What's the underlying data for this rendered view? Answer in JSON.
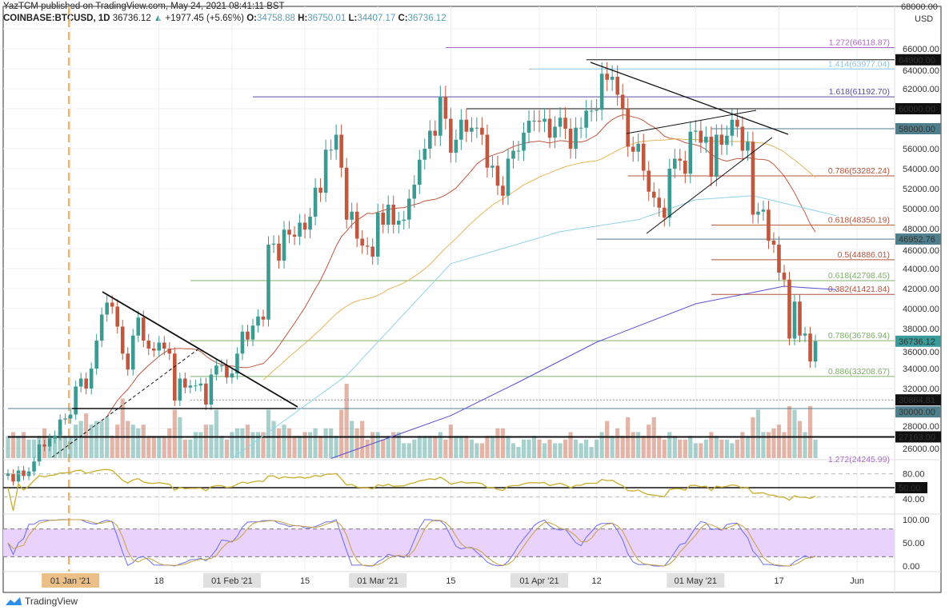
{
  "header": {
    "published": "YazTCM published on TradingView.com, May 24, 2021 08:41:11 BST",
    "symbol": "COINBASE:BTCUSD, 1D",
    "last": "36736.12",
    "change": "+1977.45 (+5.69%)",
    "open_label": "O:",
    "open": "34758.88",
    "high_label": "H:",
    "high": "36750.01",
    "low_label": "L:",
    "low": "34407.17",
    "close_label": "C:",
    "close": "36736.12"
  },
  "footer": {
    "brand": "TradingView"
  },
  "colors": {
    "up": "#3d9a93",
    "down": "#c0583f",
    "sma_fast": "#c0583f",
    "sma_mid": "#e8b45a",
    "sma_slow": "#8fd3e8",
    "sma_long": "#5a4fcf",
    "rsi": "#c9ad2b",
    "stoch_k": "#6a6ef0",
    "stoch_d": "#c8a048",
    "stoch_band": "#e9d2fb",
    "jan_marker": "#e8b870"
  },
  "chart_data": {
    "type": "candlestick",
    "symbol": "COINBASE:BTCUSD",
    "interval": "1D",
    "currency": "USD",
    "y_scale": "price",
    "ylim": [
      26000,
      68000
    ],
    "y_ticks": [
      "68000.00",
      "66000.00",
      "64000.00",
      "62000.00",
      "60000.00",
      "58000.00",
      "56000.00",
      "54000.00",
      "52000.00",
      "50000.00",
      "48000.00",
      "46000.00",
      "44000.00",
      "42000.00",
      "40000.00",
      "38000.00",
      "36000.00",
      "34000.00",
      "32000.00",
      "30000.00",
      "28000.00",
      "26000.00"
    ],
    "x_ticks": [
      {
        "date": "2021-01-01",
        "label": "01 Jan '21",
        "highlight": "orange"
      },
      {
        "date": "2021-01-18",
        "label": "18"
      },
      {
        "date": "2021-02-01",
        "label": "01 Feb '21",
        "highlight": "gray"
      },
      {
        "date": "2021-02-15",
        "label": "15"
      },
      {
        "date": "2021-03-01",
        "label": "01 Mar '21",
        "highlight": "gray"
      },
      {
        "date": "2021-03-15",
        "label": "15"
      },
      {
        "date": "2021-04-01",
        "label": "01 Apr '21",
        "highlight": "gray"
      },
      {
        "date": "2021-04-12",
        "label": "12"
      },
      {
        "date": "2021-05-01",
        "label": "01 May '21",
        "highlight": "gray"
      },
      {
        "date": "2021-05-17",
        "label": "17"
      },
      {
        "date": "2021-06-01",
        "label": "Jun"
      }
    ],
    "candles_close_volume": [
      [
        "2020-12-20",
        23500,
        3
      ],
      [
        "2020-12-21",
        22700,
        3.5
      ],
      [
        "2020-12-22",
        23800,
        3
      ],
      [
        "2020-12-23",
        23250,
        3.5
      ],
      [
        "2020-12-24",
        23700,
        2.5
      ],
      [
        "2020-12-25",
        24700,
        2.5
      ],
      [
        "2020-12-26",
        26400,
        3
      ],
      [
        "2020-12-27",
        26200,
        4
      ],
      [
        "2020-12-28",
        27000,
        3
      ],
      [
        "2020-12-29",
        27300,
        3
      ],
      [
        "2020-12-30",
        28900,
        3.5
      ],
      [
        "2020-12-31",
        29000,
        3
      ],
      [
        "2021-01-01",
        29400,
        3
      ],
      [
        "2021-01-02",
        32200,
        4.5
      ],
      [
        "2021-01-03",
        33000,
        5
      ],
      [
        "2021-01-04",
        32000,
        6
      ],
      [
        "2021-01-05",
        34000,
        4.5
      ],
      [
        "2021-01-06",
        36800,
        5
      ],
      [
        "2021-01-07",
        39400,
        5
      ],
      [
        "2021-01-08",
        40600,
        5.5
      ],
      [
        "2021-01-09",
        40200,
        3
      ],
      [
        "2021-01-10",
        38200,
        4.5
      ],
      [
        "2021-01-11",
        35500,
        8
      ],
      [
        "2021-01-12",
        33900,
        5
      ],
      [
        "2021-01-13",
        37300,
        4.5
      ],
      [
        "2021-01-14",
        39100,
        4
      ],
      [
        "2021-01-15",
        36800,
        4.5
      ],
      [
        "2021-01-16",
        36000,
        3
      ],
      [
        "2021-01-17",
        35800,
        3
      ],
      [
        "2021-01-18",
        36600,
        3
      ],
      [
        "2021-01-19",
        36000,
        3
      ],
      [
        "2021-01-20",
        35500,
        4
      ],
      [
        "2021-01-21",
        30800,
        6.5
      ],
      [
        "2021-01-22",
        33000,
        5.5
      ],
      [
        "2021-01-23",
        32100,
        2.5
      ],
      [
        "2021-01-24",
        32300,
        2.5
      ],
      [
        "2021-01-25",
        32300,
        3.5
      ],
      [
        "2021-01-26",
        32500,
        3.5
      ],
      [
        "2021-01-27",
        30400,
        4.5
      ],
      [
        "2021-01-28",
        33400,
        4.5
      ],
      [
        "2021-01-29",
        34300,
        6.5
      ],
      [
        "2021-01-30",
        34300,
        3
      ],
      [
        "2021-01-31",
        33100,
        2.5
      ],
      [
        "2021-02-01",
        33500,
        3.5
      ],
      [
        "2021-02-02",
        35500,
        4
      ],
      [
        "2021-02-03",
        37700,
        4
      ],
      [
        "2021-02-04",
        36900,
        4.5
      ],
      [
        "2021-02-05",
        38300,
        3.5
      ],
      [
        "2021-02-06",
        39200,
        3.5
      ],
      [
        "2021-02-07",
        38900,
        3.5
      ],
      [
        "2021-02-08",
        46400,
        6.5
      ],
      [
        "2021-02-09",
        46500,
        5
      ],
      [
        "2021-02-10",
        44800,
        4
      ],
      [
        "2021-02-11",
        47900,
        4.5
      ],
      [
        "2021-02-12",
        47400,
        4
      ],
      [
        "2021-02-13",
        47200,
        3
      ],
      [
        "2021-02-14",
        48600,
        3
      ],
      [
        "2021-02-15",
        47900,
        3.5
      ],
      [
        "2021-02-16",
        49200,
        3.5
      ],
      [
        "2021-02-17",
        52100,
        4
      ],
      [
        "2021-02-18",
        51600,
        3
      ],
      [
        "2021-02-19",
        55900,
        4
      ],
      [
        "2021-02-20",
        55900,
        4
      ],
      [
        "2021-02-21",
        57400,
        3
      ],
      [
        "2021-02-22",
        54100,
        6.5
      ],
      [
        "2021-02-23",
        48900,
        10
      ],
      [
        "2021-02-24",
        49700,
        5
      ],
      [
        "2021-02-25",
        47000,
        4
      ],
      [
        "2021-02-26",
        46300,
        5
      ],
      [
        "2021-02-27",
        46200,
        2.5
      ],
      [
        "2021-02-28",
        45200,
        3.5
      ],
      [
        "2021-03-01",
        49600,
        3.5
      ],
      [
        "2021-03-02",
        48400,
        2.5
      ],
      [
        "2021-03-03",
        50400,
        3
      ],
      [
        "2021-03-04",
        48400,
        3.5
      ],
      [
        "2021-03-05",
        48800,
        3.5
      ],
      [
        "2021-03-06",
        48900,
        2
      ],
      [
        "2021-03-07",
        51000,
        2
      ],
      [
        "2021-03-08",
        52400,
        2.5
      ],
      [
        "2021-03-09",
        54900,
        3
      ],
      [
        "2021-03-10",
        56000,
        3
      ],
      [
        "2021-03-11",
        57800,
        3
      ],
      [
        "2021-03-12",
        57300,
        3
      ],
      [
        "2021-03-13",
        61200,
        3.5
      ],
      [
        "2021-03-14",
        59000,
        2.5
      ],
      [
        "2021-03-15",
        55600,
        4.5
      ],
      [
        "2021-03-16",
        56900,
        3
      ],
      [
        "2021-03-17",
        58900,
        3
      ],
      [
        "2021-03-18",
        57700,
        3
      ],
      [
        "2021-03-19",
        58100,
        2.5
      ],
      [
        "2021-03-20",
        58100,
        2
      ],
      [
        "2021-03-21",
        57400,
        2
      ],
      [
        "2021-03-22",
        54100,
        3
      ],
      [
        "2021-03-23",
        54300,
        3
      ],
      [
        "2021-03-24",
        52300,
        4
      ],
      [
        "2021-03-25",
        51300,
        4
      ],
      [
        "2021-03-26",
        55000,
        3
      ],
      [
        "2021-03-27",
        55800,
        2
      ],
      [
        "2021-03-28",
        55800,
        1.5
      ],
      [
        "2021-03-29",
        57600,
        2.5
      ],
      [
        "2021-03-30",
        58800,
        2.5
      ],
      [
        "2021-03-31",
        58800,
        3
      ],
      [
        "2021-04-01",
        58700,
        2.5
      ],
      [
        "2021-04-02",
        59000,
        2
      ],
      [
        "2021-04-03",
        57100,
        2.5
      ],
      [
        "2021-04-04",
        58200,
        2
      ],
      [
        "2021-04-05",
        59100,
        2
      ],
      [
        "2021-04-06",
        58000,
        2.5
      ],
      [
        "2021-04-07",
        56000,
        3.5
      ],
      [
        "2021-04-08",
        58100,
        2.5
      ],
      [
        "2021-04-09",
        58100,
        2
      ],
      [
        "2021-04-10",
        59800,
        2.5
      ],
      [
        "2021-04-11",
        59800,
        1.5
      ],
      [
        "2021-04-12",
        59900,
        2.5
      ],
      [
        "2021-04-13",
        63500,
        3.5
      ],
      [
        "2021-04-14",
        62900,
        5
      ],
      [
        "2021-04-15",
        63200,
        3
      ],
      [
        "2021-04-16",
        61400,
        4
      ],
      [
        "2021-04-17",
        60000,
        3
      ],
      [
        "2021-04-18",
        56200,
        5.5
      ],
      [
        "2021-04-19",
        55700,
        3.5
      ],
      [
        "2021-04-20",
        56500,
        3.5
      ],
      [
        "2021-04-21",
        53800,
        3
      ],
      [
        "2021-04-22",
        51700,
        4.5
      ],
      [
        "2021-04-23",
        51100,
        5.5
      ],
      [
        "2021-04-24",
        50100,
        3
      ],
      [
        "2021-04-25",
        49100,
        2.5
      ],
      [
        "2021-04-26",
        54000,
        3.5
      ],
      [
        "2021-04-27",
        55000,
        3
      ],
      [
        "2021-04-28",
        54800,
        2.5
      ],
      [
        "2021-04-29",
        53500,
        2.5
      ],
      [
        "2021-04-30",
        57700,
        3
      ],
      [
        "2021-05-01",
        57800,
        2
      ],
      [
        "2021-05-02",
        56600,
        2
      ],
      [
        "2021-05-03",
        57200,
        2.5
      ],
      [
        "2021-05-04",
        53200,
        3.5
      ],
      [
        "2021-05-05",
        57400,
        3
      ],
      [
        "2021-05-06",
        56400,
        2.5
      ],
      [
        "2021-05-07",
        57300,
        2.5
      ],
      [
        "2021-05-08",
        58900,
        2
      ],
      [
        "2021-05-09",
        58200,
        2.5
      ],
      [
        "2021-05-10",
        55800,
        3.5
      ],
      [
        "2021-05-11",
        56700,
        3
      ],
      [
        "2021-05-12",
        49400,
        5.5
      ],
      [
        "2021-05-13",
        49700,
        6.5
      ],
      [
        "2021-05-14",
        49900,
        3.5
      ],
      [
        "2021-05-15",
        46800,
        3.5
      ],
      [
        "2021-05-16",
        46400,
        4
      ],
      [
        "2021-05-17",
        43600,
        4.5
      ],
      [
        "2021-05-18",
        42900,
        3.5
      ],
      [
        "2021-05-19",
        37000,
        7
      ],
      [
        "2021-05-20",
        40700,
        6.5
      ],
      [
        "2021-05-21",
        37300,
        5
      ],
      [
        "2021-05-22",
        37500,
        3.5
      ],
      [
        "2021-05-23",
        34700,
        7
      ],
      [
        "2021-05-24",
        36736.12,
        2.5
      ]
    ],
    "sma_long_points": [
      [
        "2021-02-20",
        25000
      ],
      [
        "2021-03-15",
        29300
      ],
      [
        "2021-03-28",
        32640
      ],
      [
        "2021-04-12",
        36640
      ],
      [
        "2021-05-01",
        40480
      ],
      [
        "2021-05-18",
        42240
      ],
      [
        "2021-05-28",
        41900
      ]
    ],
    "sma_slow_points": [
      [
        "2021-02-01",
        25000
      ],
      [
        "2021-02-23",
        33300
      ],
      [
        "2021-03-15",
        44500
      ],
      [
        "2021-04-05",
        47700
      ],
      [
        "2021-04-20",
        48900
      ],
      [
        "2021-05-01",
        50900
      ],
      [
        "2021-05-12",
        51300
      ],
      [
        "2021-05-28",
        49300
      ]
    ],
    "levels": [
      {
        "price": 66118.87,
        "label": "1.272(66118.87)",
        "color": "#a66bc0",
        "from": "2021-03-14"
      },
      {
        "price": 64900,
        "label": "64900.00",
        "color": "#111111",
        "from": "2021-04-10",
        "tag": true
      },
      {
        "price": 63977.04,
        "label": "1.414(63977.04)",
        "color": "#8fc3ea",
        "from": "2021-03-30"
      },
      {
        "price": 61192.7,
        "label": "1.618(61192.70)",
        "color": "#5b4ca3",
        "from": "2021-02-05"
      },
      {
        "price": 60000,
        "label": "60000.00",
        "color": "#111111",
        "from": "2021-03-18",
        "tag": true
      },
      {
        "price": 58000,
        "label": "58000.00",
        "color": "#4f7f8c",
        "from": "2021-05-04",
        "tag": true
      },
      {
        "price": 53282.24,
        "label": "0.786(53282.24)",
        "color": "#b5533c",
        "from": "2021-04-18"
      },
      {
        "price": 48350.19,
        "label": "0.618(48350.19)",
        "color": "#b5533c",
        "from": "2021-05-04"
      },
      {
        "price": 46952.76,
        "label": "46952.76",
        "color": "#4f7f8c",
        "from": "2021-04-12",
        "tag": true
      },
      {
        "price": 44886.01,
        "label": "0.5(44886.01)",
        "color": "#b5533c",
        "from": "2021-05-04"
      },
      {
        "price": 42798.45,
        "label": "0.618(42798.45)",
        "color": "#7fb069",
        "from": "2021-01-24"
      },
      {
        "price": 41421.84,
        "label": "0.382(41421.84)",
        "color": "#b5533c",
        "from": "2021-05-04"
      },
      {
        "price": 36786.94,
        "label": "0.786(36786.94)",
        "color": "#7fb069",
        "from": "2021-01-24"
      },
      {
        "price": 36736.12,
        "label": "36736.12",
        "color": "#3a9b9b",
        "from": "2021-05-24",
        "tag": true
      },
      {
        "price": 33208.67,
        "label": "0.886(33208.67)",
        "color": "#7fb069",
        "from": "2021-01-24"
      },
      {
        "price": 30864.81,
        "label": "30864.81",
        "color": "#888888",
        "from": "2021-01-24",
        "tag": true,
        "dotted": true
      },
      {
        "price": 30000,
        "label": "30000.00",
        "color": "#4f7f8c",
        "from": "2020-12-20",
        "tag": true
      },
      {
        "price": 27163,
        "label": "27163.00",
        "color": "#111111",
        "from": "2020-12-20",
        "tag": true,
        "thick": true
      }
    ],
    "cut_label": "1.272(24245.99)",
    "rsi": {
      "ticks": [
        "80.00",
        "40.00"
      ],
      "tag": "50.00",
      "levels": [
        80,
        50,
        30
      ]
    },
    "stoch_rsi": {
      "ticks": [
        "100.00",
        "50.00",
        "0.00"
      ],
      "band": [
        20,
        80
      ]
    }
  }
}
